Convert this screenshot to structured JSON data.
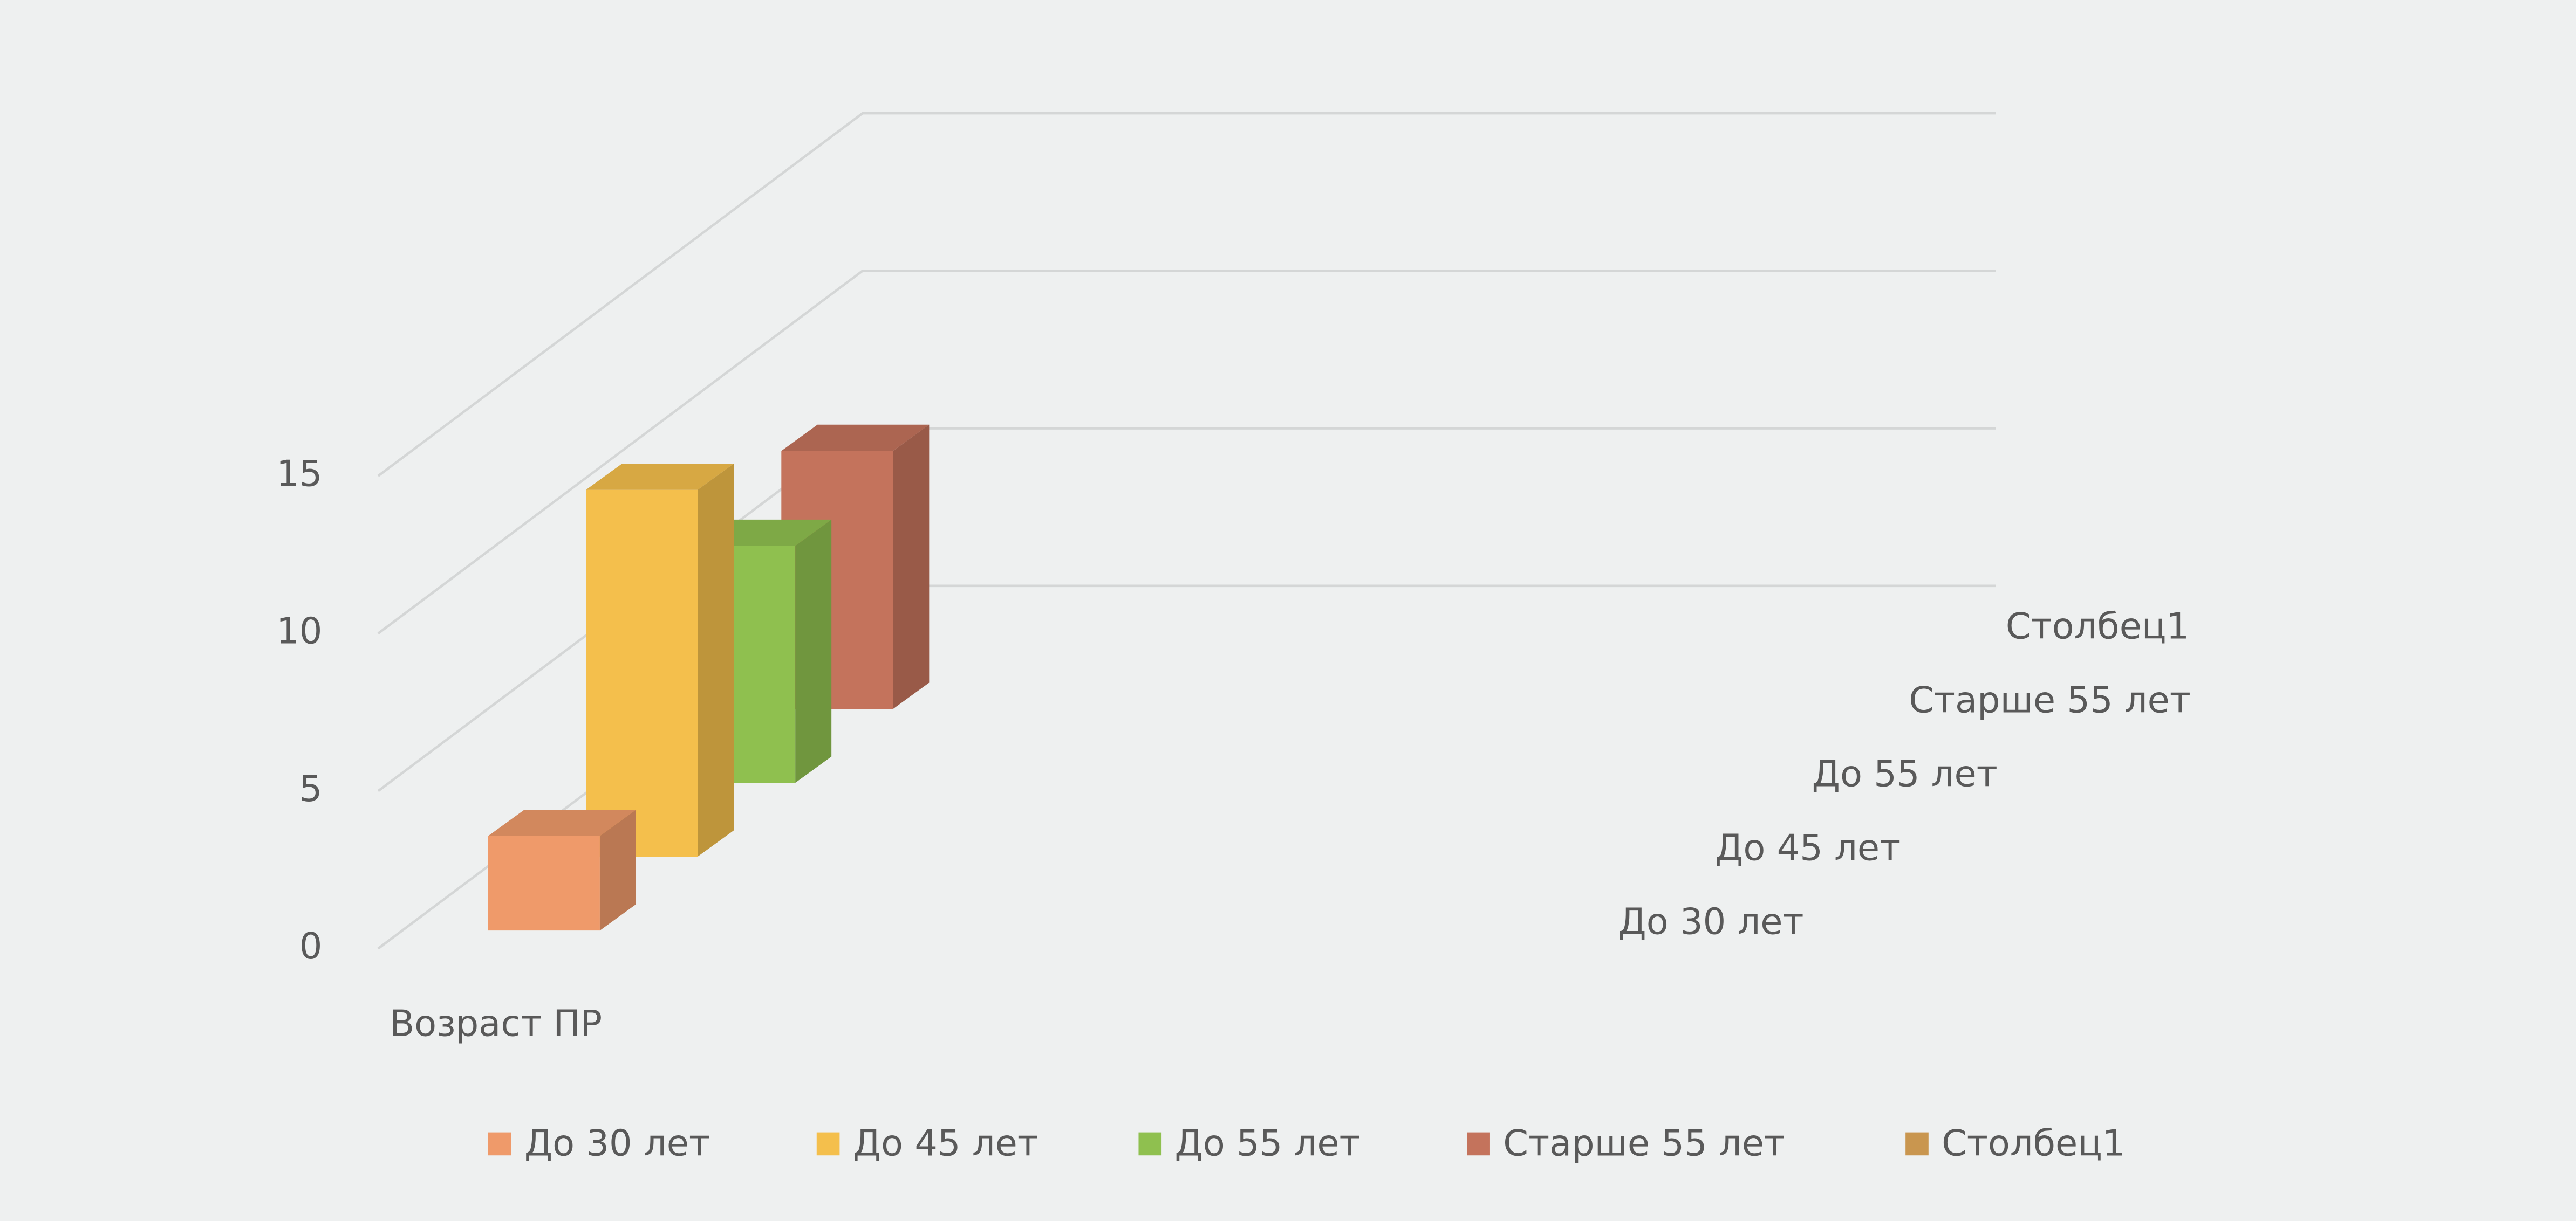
{
  "chart_data": {
    "type": "bar3d",
    "categories": [
      "Возраст ПР"
    ],
    "series": [
      {
        "name": "До 30 лет",
        "color": "#ef9a6a",
        "values": [
          3
        ]
      },
      {
        "name": "До 45 лет",
        "color": "#f4bf4c",
        "values": [
          12
        ]
      },
      {
        "name": "До 55 лет",
        "color": "#8fc04f",
        "values": [
          8
        ]
      },
      {
        "name": "Старше 55 лет",
        "color": "#c4735c",
        "values": [
          9
        ]
      },
      {
        "name": "Столбец1",
        "color": "#c9964f",
        "values": [
          null
        ]
      }
    ],
    "ylim": [
      0,
      15
    ],
    "yticks": [
      0,
      5,
      10,
      15
    ],
    "grid": true,
    "legend": "bottom"
  }
}
